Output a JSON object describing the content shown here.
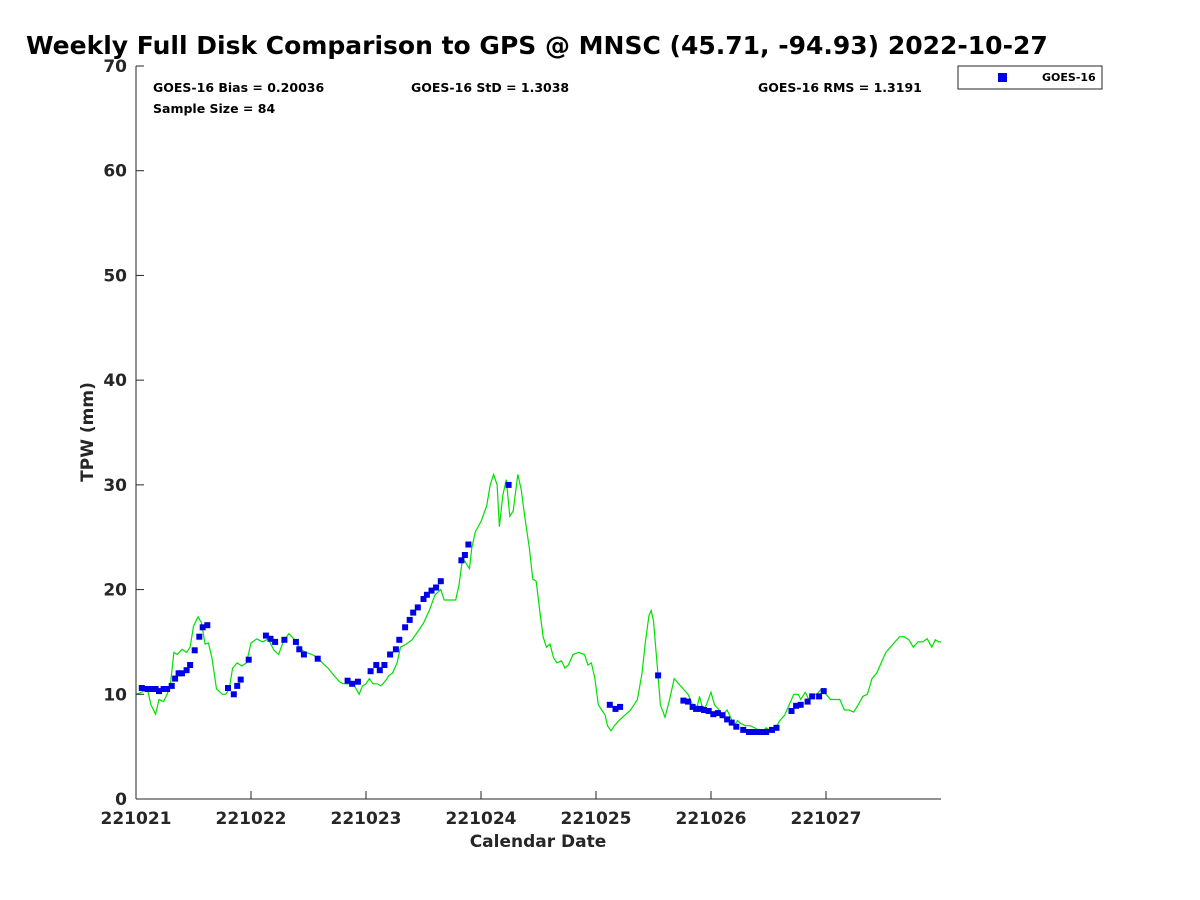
{
  "chart_data": {
    "type": "scatter",
    "title": "Weekly Full Disk Comparison to GPS @ MNSC (45.71, -94.93) 2022-10-27",
    "xlabel": "Calendar Date",
    "ylabel": "TPW (mm)",
    "xlim": [
      0,
      7
    ],
    "ylim": [
      0,
      70
    ],
    "x_ticks": [
      {
        "value": 0,
        "label": "221021"
      },
      {
        "value": 1,
        "label": "221022"
      },
      {
        "value": 2,
        "label": "221023"
      },
      {
        "value": 3,
        "label": "221024"
      },
      {
        "value": 4,
        "label": "221025"
      },
      {
        "value": 5,
        "label": "221026"
      },
      {
        "value": 6,
        "label": "221027"
      }
    ],
    "y_ticks": [
      0,
      10,
      20,
      30,
      40,
      50,
      60,
      70
    ],
    "legend": {
      "position": "top-right",
      "entries": [
        "GOES-16"
      ]
    },
    "stats": {
      "bias": "GOES-16 Bias = 0.20036",
      "std": "GOES-16 StD = 1.3038",
      "rms": "GOES-16 RMS = 1.3191",
      "sample_size": "Sample Size = 84"
    },
    "series": [
      {
        "name": "GPS",
        "kind": "line",
        "color": "#00e000",
        "points": [
          [
            0.0,
            10.0
          ],
          [
            0.05,
            10.2
          ],
          [
            0.1,
            10.5
          ],
          [
            0.13,
            9.0
          ],
          [
            0.17,
            8.1
          ],
          [
            0.2,
            9.5
          ],
          [
            0.24,
            9.3
          ],
          [
            0.27,
            10.0
          ],
          [
            0.3,
            11.0
          ],
          [
            0.33,
            14.0
          ],
          [
            0.36,
            13.8
          ],
          [
            0.4,
            14.3
          ],
          [
            0.44,
            14.0
          ],
          [
            0.47,
            14.5
          ],
          [
            0.5,
            16.5
          ],
          [
            0.54,
            17.4
          ],
          [
            0.57,
            16.8
          ],
          [
            0.6,
            14.8
          ],
          [
            0.63,
            14.9
          ],
          [
            0.66,
            13.5
          ],
          [
            0.7,
            10.5
          ],
          [
            0.75,
            10.0
          ],
          [
            0.78,
            10.0
          ],
          [
            0.81,
            10.5
          ],
          [
            0.84,
            12.5
          ],
          [
            0.88,
            13.0
          ],
          [
            0.92,
            12.7
          ],
          [
            0.96,
            13.0
          ],
          [
            1.0,
            14.9
          ],
          [
            1.05,
            15.3
          ],
          [
            1.1,
            15.0
          ],
          [
            1.15,
            15.3
          ],
          [
            1.2,
            14.2
          ],
          [
            1.24,
            13.8
          ],
          [
            1.28,
            15.0
          ],
          [
            1.33,
            15.8
          ],
          [
            1.38,
            15.2
          ],
          [
            1.43,
            14.3
          ],
          [
            1.48,
            14.0
          ],
          [
            1.53,
            13.8
          ],
          [
            1.58,
            13.5
          ],
          [
            1.63,
            12.9
          ],
          [
            1.67,
            12.5
          ],
          [
            1.72,
            11.8
          ],
          [
            1.77,
            11.2
          ],
          [
            1.8,
            11.0
          ],
          [
            1.85,
            11.0
          ],
          [
            1.9,
            10.8
          ],
          [
            1.94,
            10.0
          ],
          [
            1.97,
            10.8
          ],
          [
            2.0,
            11.0
          ],
          [
            2.03,
            11.5
          ],
          [
            2.06,
            11.0
          ],
          [
            2.1,
            11.0
          ],
          [
            2.13,
            10.8
          ],
          [
            2.17,
            11.3
          ],
          [
            2.2,
            11.8
          ],
          [
            2.23,
            12.0
          ],
          [
            2.27,
            13.0
          ],
          [
            2.3,
            14.5
          ],
          [
            2.35,
            14.8
          ],
          [
            2.4,
            15.2
          ],
          [
            2.45,
            16.0
          ],
          [
            2.5,
            16.8
          ],
          [
            2.55,
            18.0
          ],
          [
            2.6,
            19.5
          ],
          [
            2.65,
            20.0
          ],
          [
            2.68,
            19.0
          ],
          [
            2.72,
            19.0
          ],
          [
            2.78,
            19.0
          ],
          [
            2.81,
            20.5
          ],
          [
            2.84,
            23.0
          ],
          [
            2.87,
            22.5
          ],
          [
            2.9,
            22.0
          ],
          [
            2.92,
            24.0
          ],
          [
            2.95,
            25.5
          ],
          [
            3.0,
            26.5
          ],
          [
            3.05,
            28.0
          ],
          [
            3.08,
            30.0
          ],
          [
            3.11,
            31.0
          ],
          [
            3.14,
            30.0
          ],
          [
            3.16,
            26.0
          ],
          [
            3.19,
            29.0
          ],
          [
            3.22,
            30.5
          ],
          [
            3.25,
            27.0
          ],
          [
            3.28,
            27.5
          ],
          [
            3.32,
            31.0
          ],
          [
            3.35,
            29.5
          ],
          [
            3.38,
            27.0
          ],
          [
            3.42,
            24.0
          ],
          [
            3.45,
            21.0
          ],
          [
            3.48,
            20.8
          ],
          [
            3.51,
            18.0
          ],
          [
            3.54,
            15.5
          ],
          [
            3.57,
            14.5
          ],
          [
            3.6,
            14.8
          ],
          [
            3.63,
            13.5
          ],
          [
            3.66,
            13.0
          ],
          [
            3.7,
            13.2
          ],
          [
            3.73,
            12.5
          ],
          [
            3.76,
            12.8
          ],
          [
            3.8,
            13.8
          ],
          [
            3.85,
            14.0
          ],
          [
            3.9,
            13.8
          ],
          [
            3.93,
            12.8
          ],
          [
            3.96,
            13.0
          ],
          [
            3.99,
            11.5
          ],
          [
            4.02,
            9.0
          ],
          [
            4.05,
            8.5
          ],
          [
            4.08,
            8.0
          ],
          [
            4.1,
            7.0
          ],
          [
            4.13,
            6.5
          ],
          [
            4.16,
            7.0
          ],
          [
            4.2,
            7.5
          ],
          [
            4.25,
            8.0
          ],
          [
            4.3,
            8.5
          ],
          [
            4.33,
            9.0
          ],
          [
            4.36,
            9.5
          ],
          [
            4.4,
            12.0
          ],
          [
            4.43,
            15.0
          ],
          [
            4.46,
            17.5
          ],
          [
            4.48,
            18.0
          ],
          [
            4.5,
            17.0
          ],
          [
            4.53,
            13.0
          ],
          [
            4.56,
            9.0
          ],
          [
            4.6,
            7.8
          ],
          [
            4.64,
            9.5
          ],
          [
            4.68,
            11.5
          ],
          [
            4.72,
            11.0
          ],
          [
            4.76,
            10.5
          ],
          [
            4.8,
            10.0
          ],
          [
            4.84,
            9.0
          ],
          [
            4.88,
            8.8
          ],
          [
            4.9,
            9.8
          ],
          [
            4.93,
            8.5
          ],
          [
            4.96,
            9.0
          ],
          [
            5.0,
            10.2
          ],
          [
            5.03,
            9.0
          ],
          [
            5.07,
            8.5
          ],
          [
            5.1,
            8.0
          ],
          [
            5.14,
            8.5
          ],
          [
            5.17,
            7.8
          ],
          [
            5.2,
            7.0
          ],
          [
            5.23,
            7.5
          ],
          [
            5.26,
            7.2
          ],
          [
            5.3,
            7.0
          ],
          [
            5.34,
            7.0
          ],
          [
            5.38,
            6.8
          ],
          [
            5.42,
            6.5
          ],
          [
            5.45,
            6.5
          ],
          [
            5.48,
            6.8
          ],
          [
            5.52,
            6.5
          ],
          [
            5.56,
            6.8
          ],
          [
            5.6,
            7.5
          ],
          [
            5.64,
            8.0
          ],
          [
            5.68,
            9.0
          ],
          [
            5.72,
            10.0
          ],
          [
            5.76,
            10.0
          ],
          [
            5.78,
            9.5
          ],
          [
            5.82,
            10.2
          ],
          [
            5.85,
            9.5
          ],
          [
            5.88,
            10.0
          ],
          [
            5.92,
            10.0
          ],
          [
            5.96,
            10.5
          ],
          [
            6.0,
            10.0
          ],
          [
            6.04,
            9.5
          ],
          [
            6.08,
            9.5
          ],
          [
            6.12,
            9.5
          ],
          [
            6.16,
            8.5
          ],
          [
            6.2,
            8.5
          ],
          [
            6.24,
            8.3
          ],
          [
            6.28,
            9.0
          ],
          [
            6.32,
            9.8
          ],
          [
            6.36,
            10.0
          ],
          [
            6.4,
            11.5
          ],
          [
            6.44,
            12.0
          ],
          [
            6.48,
            13.0
          ],
          [
            6.52,
            14.0
          ],
          [
            6.56,
            14.5
          ],
          [
            6.6,
            15.0
          ],
          [
            6.64,
            15.5
          ],
          [
            6.68,
            15.5
          ],
          [
            6.72,
            15.2
          ],
          [
            6.76,
            14.5
          ],
          [
            6.8,
            15.0
          ],
          [
            6.84,
            15.0
          ],
          [
            6.88,
            15.3
          ],
          [
            6.92,
            14.5
          ],
          [
            6.95,
            15.2
          ],
          [
            6.98,
            15.0
          ],
          [
            7.0,
            15.0
          ]
        ]
      },
      {
        "name": "GOES-16",
        "kind": "scatter",
        "color": "#0000e6",
        "points": [
          [
            0.05,
            10.6
          ],
          [
            0.1,
            10.5
          ],
          [
            0.13,
            10.5
          ],
          [
            0.17,
            10.5
          ],
          [
            0.2,
            10.3
          ],
          [
            0.24,
            10.5
          ],
          [
            0.27,
            10.5
          ],
          [
            0.31,
            10.8
          ],
          [
            0.34,
            11.5
          ],
          [
            0.37,
            12.0
          ],
          [
            0.4,
            12.0
          ],
          [
            0.44,
            12.3
          ],
          [
            0.47,
            12.8
          ],
          [
            0.51,
            14.2
          ],
          [
            0.55,
            15.5
          ],
          [
            0.58,
            16.4
          ],
          [
            0.62,
            16.6
          ],
          [
            0.8,
            10.6
          ],
          [
            0.85,
            10.0
          ],
          [
            0.88,
            10.8
          ],
          [
            0.91,
            11.4
          ],
          [
            0.98,
            13.3
          ],
          [
            1.13,
            15.6
          ],
          [
            1.17,
            15.3
          ],
          [
            1.21,
            15.0
          ],
          [
            1.29,
            15.2
          ],
          [
            1.39,
            15.0
          ],
          [
            1.42,
            14.3
          ],
          [
            1.46,
            13.8
          ],
          [
            1.58,
            13.4
          ],
          [
            1.84,
            11.3
          ],
          [
            1.88,
            11.0
          ],
          [
            1.93,
            11.2
          ],
          [
            2.04,
            12.2
          ],
          [
            2.09,
            12.8
          ],
          [
            2.12,
            12.3
          ],
          [
            2.16,
            12.8
          ],
          [
            2.21,
            13.8
          ],
          [
            2.26,
            14.3
          ],
          [
            2.29,
            15.2
          ],
          [
            2.34,
            16.4
          ],
          [
            2.38,
            17.1
          ],
          [
            2.41,
            17.8
          ],
          [
            2.45,
            18.3
          ],
          [
            2.5,
            19.1
          ],
          [
            2.53,
            19.5
          ],
          [
            2.57,
            19.9
          ],
          [
            2.61,
            20.2
          ],
          [
            2.65,
            20.8
          ],
          [
            2.83,
            22.8
          ],
          [
            2.86,
            23.3
          ],
          [
            2.89,
            24.3
          ],
          [
            3.24,
            30.0
          ],
          [
            4.12,
            9.0
          ],
          [
            4.17,
            8.6
          ],
          [
            4.21,
            8.8
          ],
          [
            4.54,
            11.8
          ],
          [
            4.76,
            9.4
          ],
          [
            4.8,
            9.3
          ],
          [
            4.84,
            8.8
          ],
          [
            4.87,
            8.6
          ],
          [
            4.91,
            8.6
          ],
          [
            4.94,
            8.5
          ],
          [
            4.98,
            8.4
          ],
          [
            5.02,
            8.1
          ],
          [
            5.06,
            8.2
          ],
          [
            5.1,
            8.0
          ],
          [
            5.14,
            7.6
          ],
          [
            5.18,
            7.3
          ],
          [
            5.22,
            6.9
          ],
          [
            5.28,
            6.6
          ],
          [
            5.33,
            6.4
          ],
          [
            5.38,
            6.4
          ],
          [
            5.43,
            6.4
          ],
          [
            5.48,
            6.4
          ],
          [
            5.53,
            6.6
          ],
          [
            5.57,
            6.8
          ],
          [
            5.7,
            8.4
          ],
          [
            5.74,
            8.9
          ],
          [
            5.78,
            9.0
          ],
          [
            5.84,
            9.3
          ],
          [
            5.88,
            9.8
          ],
          [
            5.94,
            9.8
          ],
          [
            5.98,
            10.3
          ]
        ]
      }
    ]
  }
}
